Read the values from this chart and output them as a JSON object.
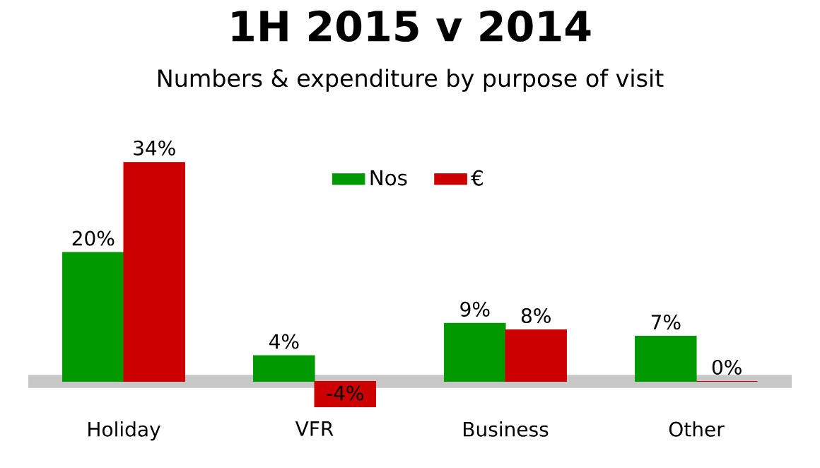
{
  "chart_data": {
    "type": "bar",
    "title": "1H 2015 v 2014",
    "subtitle": "Numbers & expenditure by purpose of visit",
    "categories": [
      "Holiday",
      "VFR",
      "Business",
      "Other"
    ],
    "series": [
      {
        "name": "Nos",
        "color": "#009900",
        "values": [
          20,
          4,
          9,
          7
        ],
        "value_labels": [
          "20%",
          "4%",
          "9%",
          "7%"
        ]
      },
      {
        "name": "€",
        "color": "#cc0000",
        "values": [
          34,
          -4,
          8,
          0
        ],
        "value_labels": [
          "34%",
          "-4%",
          "8%",
          "0%"
        ]
      }
    ],
    "legend": "top"
  }
}
